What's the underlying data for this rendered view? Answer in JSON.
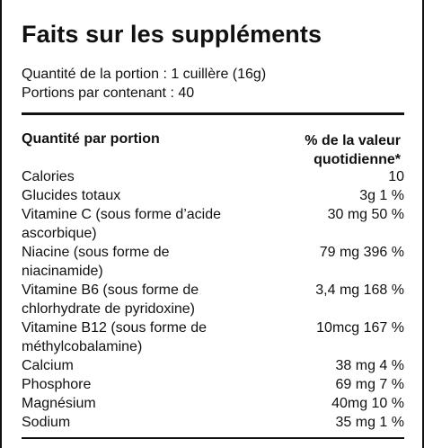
{
  "label": {
    "title": "Faits sur les suppléments",
    "serving_size": "Quantité de la portion : 1 cuillère (16g)",
    "servings_per_container": "Portions par contenant : 40",
    "header_left": "Quantité par portion",
    "header_right_line1": "% de la valeur",
    "header_right_line2": "quotidienne*",
    "rows": [
      {
        "name": "Calories",
        "value": "10"
      },
      {
        "name": "Glucides totaux",
        "value": "3g 1 %"
      },
      {
        "name": "Vitamine C (sous forme d’acide ascorbique)",
        "value": "30 mg 50 %"
      },
      {
        "name": "Niacine (sous forme de niacinamide)",
        "value": "79 mg 396 %"
      },
      {
        "name": "Vitamine B6 (sous forme de chlorhydrate de pyridoxine)",
        "value": "3,4 mg 168 %"
      },
      {
        "name": "Vitamine B12 (sous forme de méthylcobalamine)",
        "value": "10mcg 167 %"
      },
      {
        "name": "Calcium",
        "value": "38 mg 4 %"
      },
      {
        "name": "Phosphore",
        "value": "69 mg 7 %"
      },
      {
        "name": "Magnésium",
        "value": "40mg 10 %"
      },
      {
        "name": "Sodium",
        "value": "35 mg 1 %"
      }
    ]
  }
}
